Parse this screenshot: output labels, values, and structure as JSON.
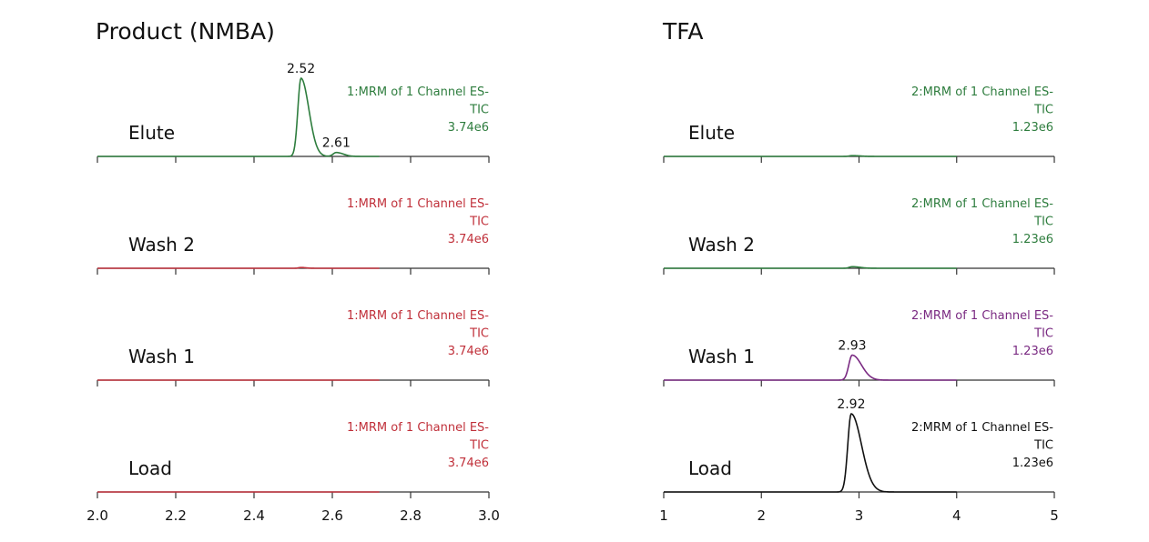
{
  "colors": {
    "green": "#2e7d3e",
    "red": "#c0303a",
    "purple": "#7a2a82",
    "black": "#111111",
    "axis": "#333333"
  },
  "chart_data": [
    {
      "type": "line",
      "title": "Product (NMBA)",
      "xlabel": "",
      "ylabel": "",
      "xlim": [
        2.0,
        3.0
      ],
      "x_ticks": [
        2.0,
        2.2,
        2.4,
        2.6,
        2.8,
        3.0
      ],
      "x_tick_labels": [
        "2.0",
        "2.2",
        "2.4",
        "2.6",
        "2.8",
        "3.0"
      ],
      "tick_labels_shown_on": "Load",
      "series": [
        {
          "name": "Elute",
          "color": "green",
          "info": [
            "1:MRM of 1 Channel ES-",
            "TIC",
            "3.74e6"
          ],
          "peaks": [
            {
              "x": 2.52,
              "label": "2.52",
              "height": 1.0,
              "width": 0.008,
              "tail": 0.012
            },
            {
              "x": 2.61,
              "label": "2.61",
              "height": 0.05,
              "width": 0.008,
              "tail": 0.01
            }
          ],
          "trace_end": 2.72
        },
        {
          "name": "Wash 2",
          "color": "red",
          "info": [
            "1:MRM of 1 Channel ES-",
            "TIC",
            "3.74e6"
          ],
          "peaks": [
            {
              "x": 2.52,
              "label": "",
              "height": 0.01,
              "width": 0.006,
              "tail": 0.006
            }
          ],
          "trace_end": 2.72
        },
        {
          "name": "Wash 1",
          "color": "red",
          "info": [
            "1:MRM of 1 Channel ES-",
            "TIC",
            "3.74e6"
          ],
          "peaks": [],
          "trace_end": 2.72
        },
        {
          "name": "Load",
          "color": "red",
          "info": [
            "1:MRM of 1 Channel ES-",
            "TIC",
            "3.74e6"
          ],
          "peaks": [],
          "trace_end": 2.72
        }
      ]
    },
    {
      "type": "line",
      "title": "TFA",
      "xlabel": "",
      "ylabel": "",
      "xlim": [
        1,
        5
      ],
      "x_ticks": [
        1,
        2,
        3,
        4,
        5
      ],
      "x_tick_labels": [
        "1",
        "2",
        "3",
        "4",
        "5"
      ],
      "tick_labels_shown_on": "Load",
      "series": [
        {
          "name": "Elute",
          "color": "green",
          "info": [
            "2:MRM of 1 Channel ES-",
            "TIC",
            "1.23e6"
          ],
          "peaks": [
            {
              "x": 2.93,
              "label": "",
              "height": 0.01,
              "width": 0.03,
              "tail": 0.05
            }
          ],
          "trace_end": 4.0
        },
        {
          "name": "Wash 2",
          "color": "green",
          "info": [
            "2:MRM of 1 Channel ES-",
            "TIC",
            "1.23e6"
          ],
          "peaks": [
            {
              "x": 2.93,
              "label": "",
              "height": 0.02,
              "width": 0.03,
              "tail": 0.05
            }
          ],
          "trace_end": 4.0
        },
        {
          "name": "Wash 1",
          "color": "purple",
          "info": [
            "2:MRM of 1 Channel ES-",
            "TIC",
            "1.23e6"
          ],
          "peaks": [
            {
              "x": 2.93,
              "label": "2.93",
              "height": 0.32,
              "width": 0.035,
              "tail": 0.06
            }
          ],
          "trace_end": 4.0
        },
        {
          "name": "Load",
          "color": "black",
          "info": [
            "2:MRM of 1 Channel ES-",
            "TIC",
            "1.23e6"
          ],
          "peaks": [
            {
              "x": 2.92,
              "label": "2.92",
              "height": 1.0,
              "width": 0.035,
              "tail": 0.07
            }
          ],
          "trace_end": 4.0
        }
      ]
    }
  ]
}
